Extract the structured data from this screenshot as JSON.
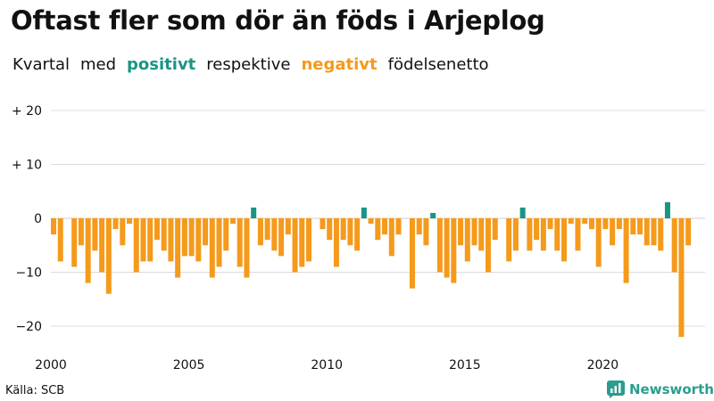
{
  "title": "Oftast fler som dör än föds i Arjeplog",
  "subtitle": {
    "part1": "Kvartal",
    "part2": "med",
    "positive_word": "positivt",
    "part3": "respektive",
    "negative_word": "negativt",
    "part4": "födelsenetto"
  },
  "source": "Källa: SCB",
  "brand": "Newsworthy",
  "colors": {
    "positive": "#1a9584",
    "negative": "#f59a1b",
    "grid": "#dcdcdc",
    "brand": "#2a9d8f"
  },
  "chart_data": {
    "type": "bar",
    "period": "quarter",
    "start_year": 2000,
    "ylim": [
      -23,
      23
    ],
    "yticks": [
      {
        "value": 20,
        "label": "+ 20"
      },
      {
        "value": 10,
        "label": "+ 10"
      },
      {
        "value": 0,
        "label": "0"
      },
      {
        "value": -10,
        "label": "−10"
      },
      {
        "value": -20,
        "label": "−20"
      }
    ],
    "xticks": [
      "2000",
      "2005",
      "2010",
      "2015",
      "2020"
    ],
    "grid": true,
    "values": [
      -3,
      -8,
      0,
      -9,
      -5,
      -12,
      -6,
      -10,
      -14,
      -2,
      -5,
      -1,
      -10,
      -8,
      -8,
      -4,
      -6,
      -8,
      -11,
      -7,
      -7,
      -8,
      -5,
      -11,
      -9,
      -6,
      -1,
      -9,
      -11,
      2,
      -5,
      -4,
      -6,
      -7,
      -3,
      -10,
      -9,
      -8,
      0,
      -2,
      -4,
      -9,
      -4,
      -5,
      -6,
      2,
      -1,
      -4,
      -3,
      -7,
      -3,
      0,
      -13,
      -3,
      -5,
      1,
      -10,
      -11,
      -12,
      -5,
      -8,
      -5,
      -6,
      -10,
      -4,
      0,
      -8,
      -6,
      2,
      -6,
      -4,
      -6,
      -2,
      -6,
      -8,
      -1,
      -6,
      -1,
      -2,
      -9,
      -2,
      -5,
      -2,
      -12,
      -3,
      -3,
      -5,
      -5,
      -6,
      3,
      -10,
      -22,
      -5
    ]
  }
}
